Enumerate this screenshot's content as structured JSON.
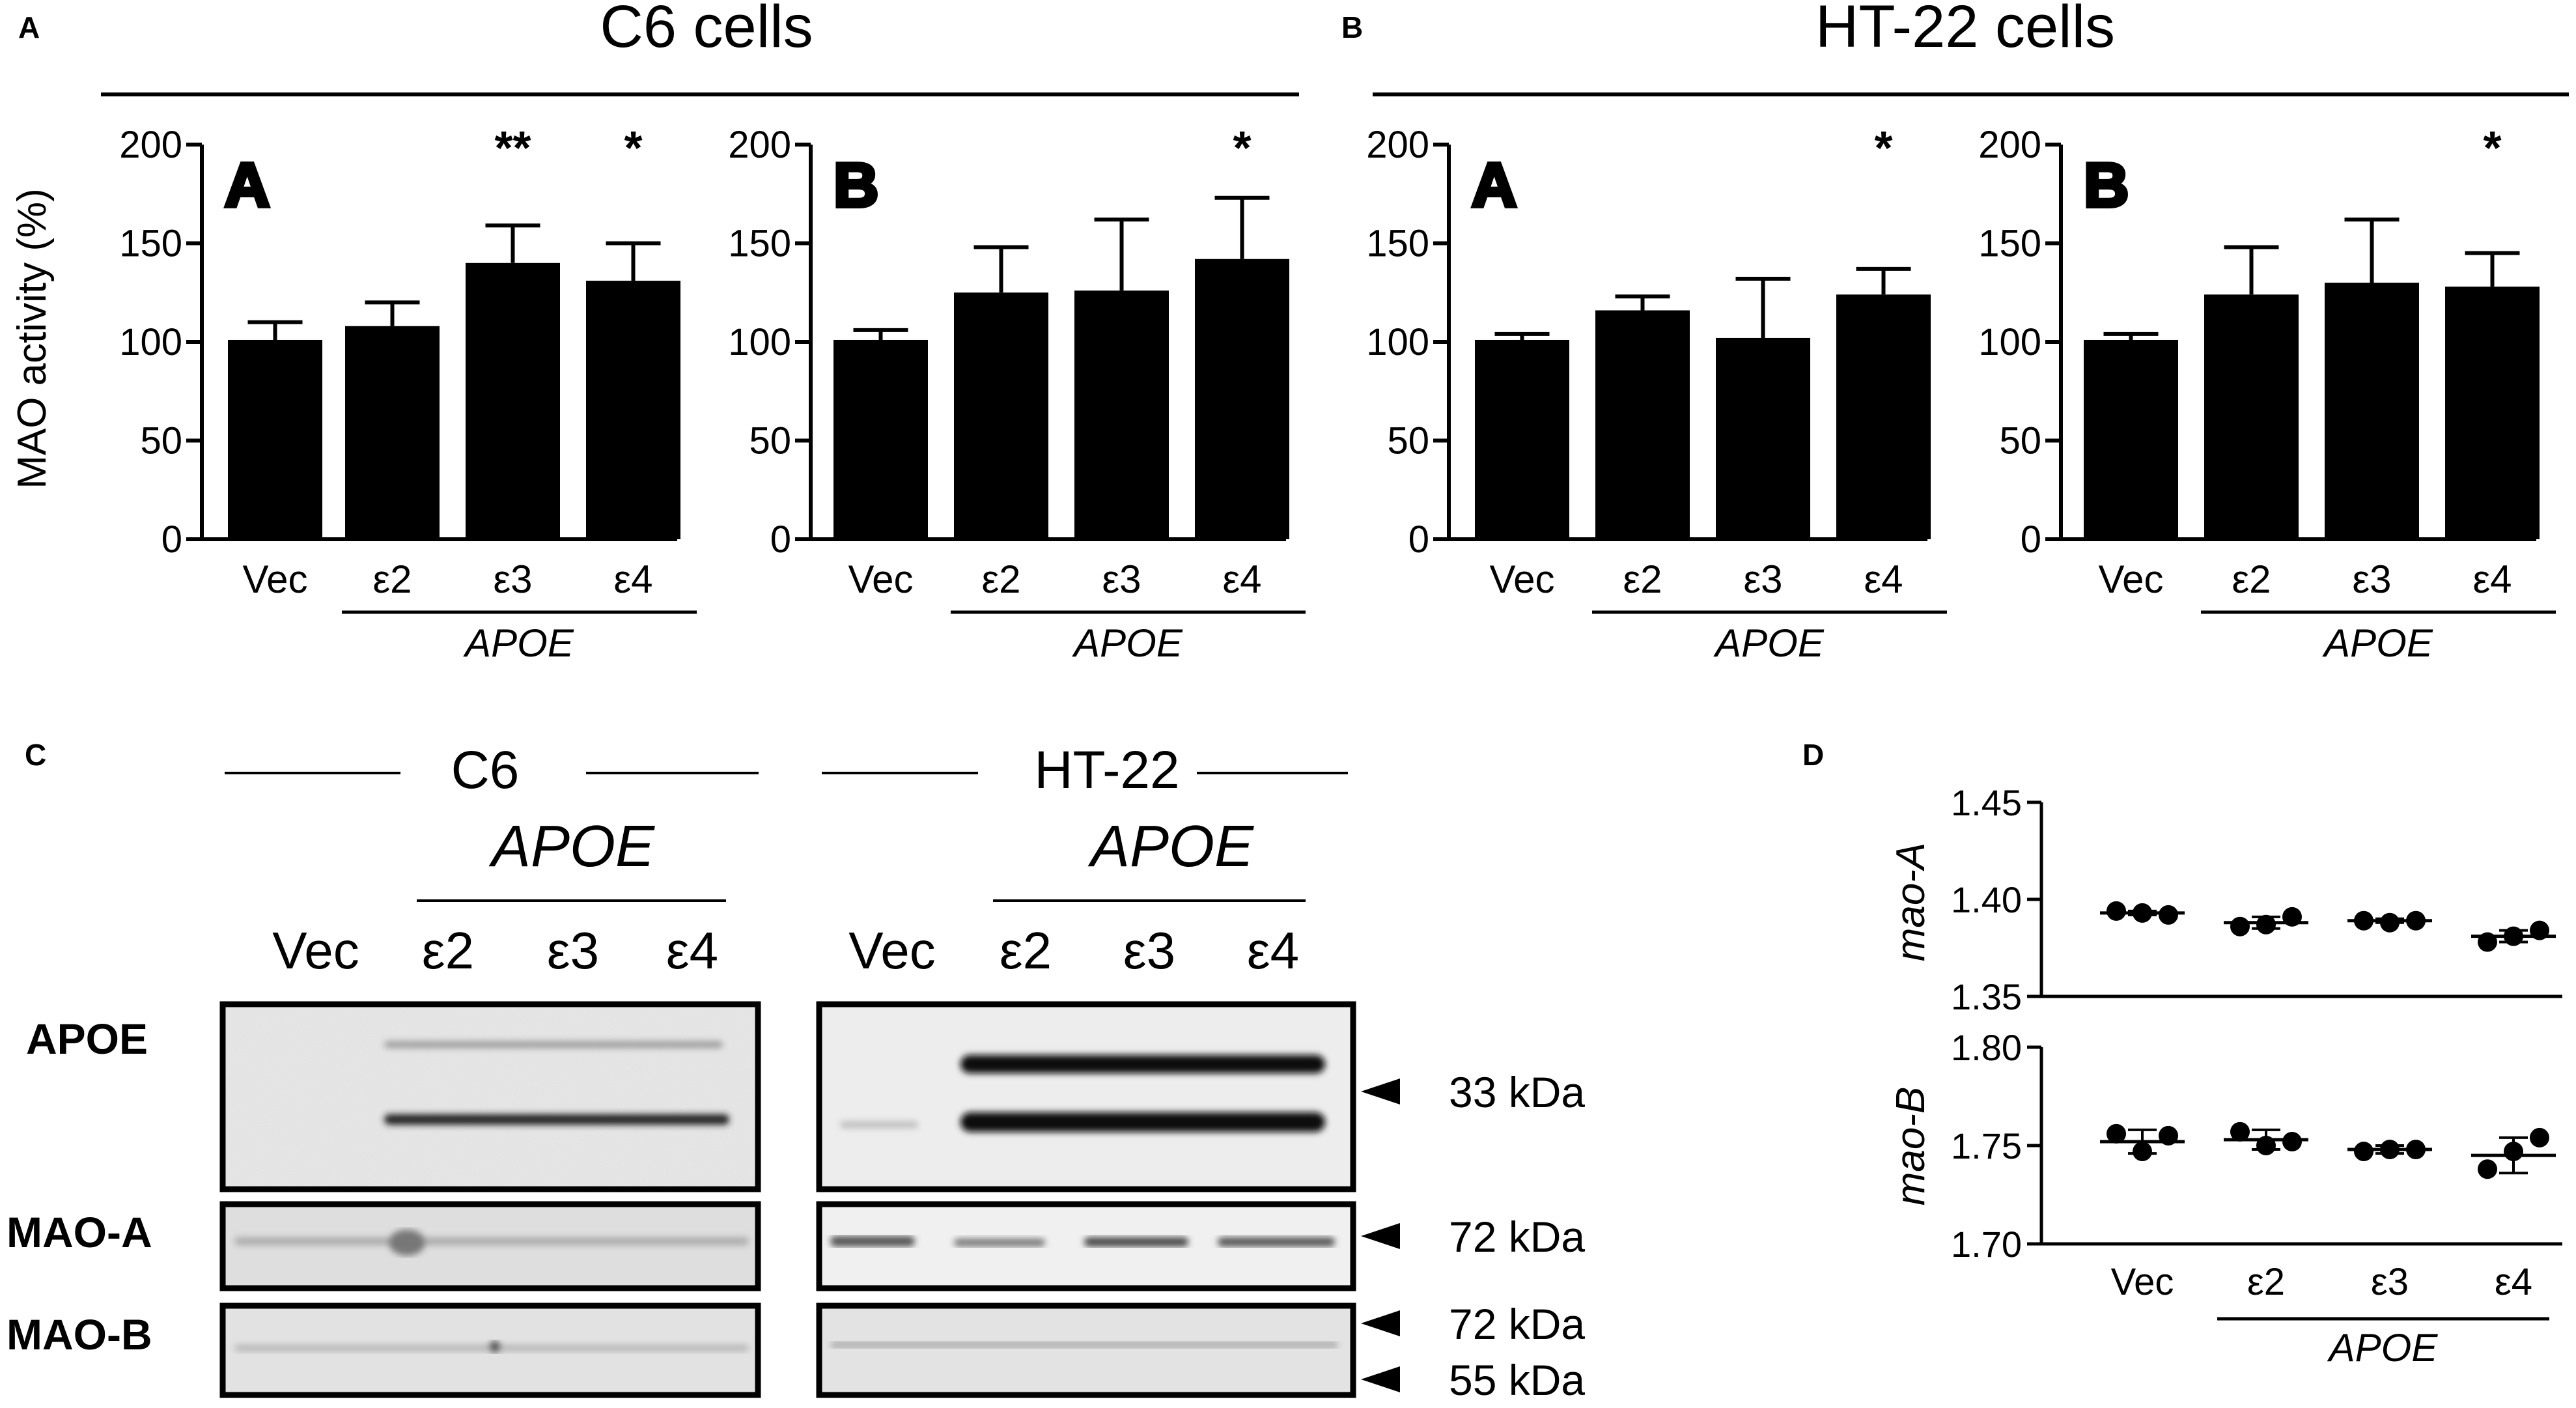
{
  "panel_letters": {
    "a": "A",
    "b": "B",
    "c": "C",
    "d": "D"
  },
  "groups": {
    "c6_cells": "C6 cells",
    "ht22_cells": "HT-22 cells"
  },
  "categories": [
    "Vec",
    "ε2",
    "ε3",
    "ε4"
  ],
  "apoe_label": "APOE",
  "chart_data": [
    {
      "id": "c6-mao-a",
      "type": "bar",
      "group": "C6 cells",
      "inset": "A",
      "ylabel": "MAO activity (%)",
      "ylim": [
        0,
        200
      ],
      "yticks": [
        0,
        50,
        100,
        150,
        200
      ],
      "values": [
        101,
        108,
        140,
        131
      ],
      "errors": [
        9,
        12,
        19,
        19
      ],
      "significance": [
        "",
        "",
        "**",
        "*"
      ]
    },
    {
      "id": "c6-mao-b",
      "type": "bar",
      "group": "C6 cells",
      "inset": "B",
      "ylabel": "",
      "ylim": [
        0,
        200
      ],
      "yticks": [
        0,
        50,
        100,
        150,
        200
      ],
      "values": [
        101,
        125,
        126,
        142
      ],
      "errors": [
        5,
        23,
        36,
        31
      ],
      "significance": [
        "",
        "",
        "",
        "*"
      ]
    },
    {
      "id": "ht22-mao-a",
      "type": "bar",
      "group": "HT-22 cells",
      "inset": "A",
      "ylabel": "",
      "ylim": [
        0,
        200
      ],
      "yticks": [
        0,
        50,
        100,
        150,
        200
      ],
      "values": [
        101,
        116,
        102,
        124
      ],
      "errors": [
        3,
        7,
        30,
        13
      ],
      "significance": [
        "",
        "",
        "",
        "*"
      ]
    },
    {
      "id": "ht22-mao-b",
      "type": "bar",
      "group": "HT-22 cells",
      "inset": "B",
      "ylabel": "",
      "ylim": [
        0,
        200
      ],
      "yticks": [
        0,
        50,
        100,
        150,
        200
      ],
      "values": [
        101,
        124,
        130,
        128
      ],
      "errors": [
        3,
        24,
        32,
        17
      ],
      "significance": [
        "",
        "",
        "",
        "*"
      ]
    },
    {
      "id": "mao-a-mrna",
      "type": "scatter",
      "ylabel": "mao-A",
      "ylim": [
        1.35,
        1.45
      ],
      "yticks": [
        "1.45",
        "1.40",
        "1.35"
      ],
      "points": [
        [
          1.394,
          1.393,
          1.392
        ],
        [
          1.386,
          1.387,
          1.391
        ],
        [
          1.389,
          1.388,
          1.389
        ],
        [
          1.378,
          1.381,
          1.384
        ]
      ],
      "means": [
        1.393,
        1.388,
        1.389,
        1.381
      ],
      "sd": [
        0.001,
        0.003,
        0.001,
        0.003
      ]
    },
    {
      "id": "mao-b-mrna",
      "type": "scatter",
      "ylabel": "mao-B",
      "ylim": [
        1.7,
        1.8
      ],
      "yticks": [
        "1.80",
        "1.75",
        "1.70"
      ],
      "points": [
        [
          1.756,
          1.747,
          1.755
        ],
        [
          1.757,
          1.75,
          1.752
        ],
        [
          1.747,
          1.748,
          1.748
        ],
        [
          1.738,
          1.747,
          1.754
        ]
      ],
      "means": [
        1.752,
        1.753,
        1.748,
        1.745
      ],
      "sd": [
        0.006,
        0.005,
        0.002,
        0.009
      ]
    }
  ],
  "western": {
    "c6_label": "C6",
    "ht22_label": "HT-22",
    "rows": [
      "APOE",
      "MAO-A",
      "MAO-B"
    ],
    "kda": [
      "33 kDa",
      "72 kDa",
      "72 kDa",
      "55 kDa"
    ]
  }
}
